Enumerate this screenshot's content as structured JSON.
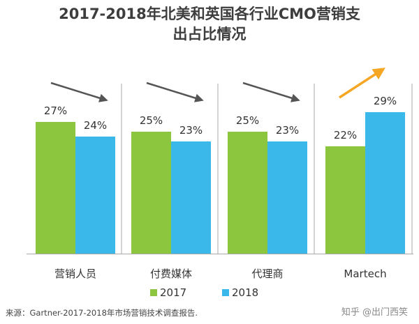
{
  "title_lines": [
    "2017-2018年北美和英国各行业CMO营销支",
    "出占比情况"
  ],
  "source": "来源：Gartner-2017-2018年市场营销技术调查报告.",
  "watermark": "知乎 @出门西笑",
  "colors": {
    "2017": "#8cc63f",
    "2018": "#3bb8ea",
    "arrow_down": "#555555",
    "arrow_up": "#f5a623",
    "axis": "#aaaaaa"
  },
  "chart_data": {
    "type": "bar",
    "categories": [
      "营销人员",
      "付费媒体",
      "代理商",
      "Martech"
    ],
    "series": [
      {
        "name": "2017",
        "values": [
          27,
          25,
          25,
          22
        ],
        "labels": [
          "27%",
          "25%",
          "25%",
          "22%"
        ]
      },
      {
        "name": "2018",
        "values": [
          24,
          23,
          23,
          29
        ],
        "labels": [
          "24%",
          "23%",
          "23%",
          "29%"
        ]
      }
    ],
    "trend": [
      "down",
      "down",
      "down",
      "up"
    ],
    "ylim": [
      0,
      30
    ],
    "grid": false,
    "legend": "bottom-center",
    "xlabel": "",
    "ylabel": "",
    "title": "2017-2018年北美和英国各行业CMO营销支出占比情况"
  }
}
